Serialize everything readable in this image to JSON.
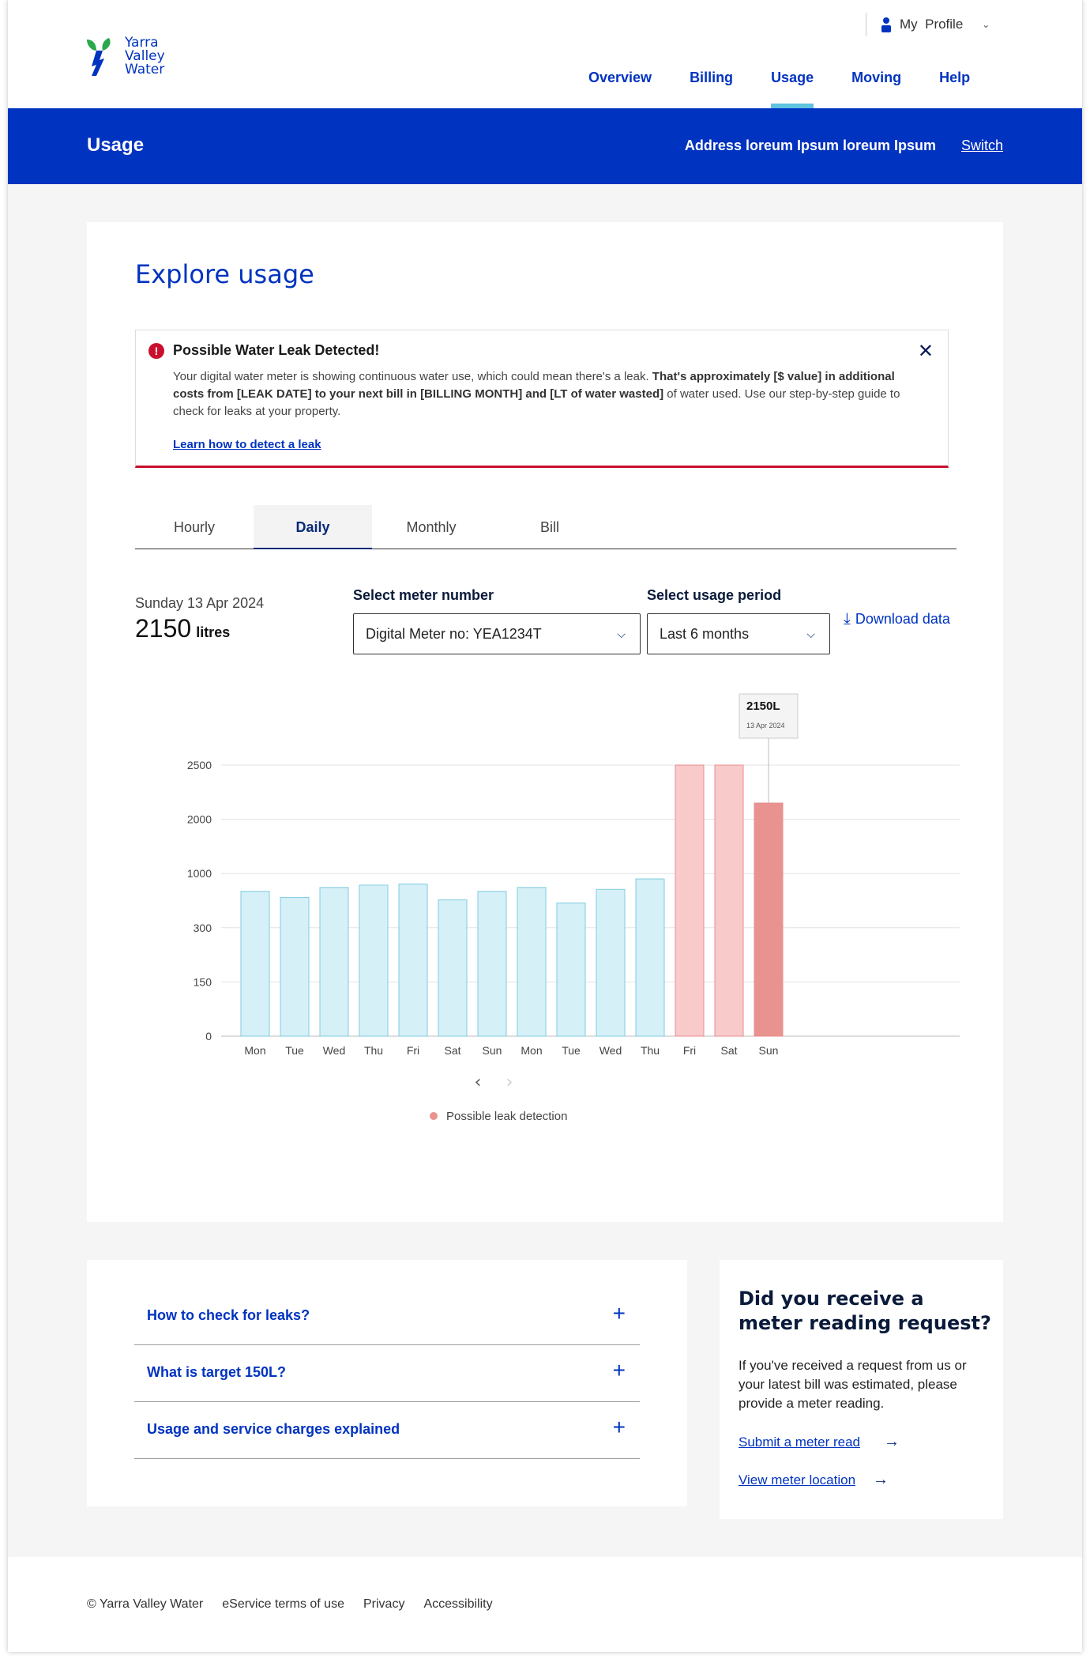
{
  "brand": {
    "name_line1": "Yarra",
    "name_line2": "Valley",
    "name_line3": "Water"
  },
  "profile": {
    "label": "My  Profile"
  },
  "nav": [
    "Overview",
    "Billing",
    "Usage",
    "Moving",
    "Help"
  ],
  "banner": {
    "title": "Usage",
    "address": "Address loreum Ipsum loreum Ipsum",
    "switch": "Switch"
  },
  "page": {
    "title": "Explore usage"
  },
  "alert": {
    "title": "Possible Water Leak Detected!",
    "text_a": "Your digital water meter is showing continuous water use, which could mean there's a leak. ",
    "text_b": "That's approximately [$ value] in additional costs from [LEAK DATE] to your next bill in [BILLING MONTH] and [LT of water wasted]",
    "text_c": " of water used.  Use our step-by-step guide to check for leaks at your property.",
    "link": "Learn how to detect a leak"
  },
  "tabs": [
    "Hourly",
    "Daily",
    "Monthly",
    "Bill"
  ],
  "summary": {
    "date": "Sunday 13 Apr 2024",
    "value": "2150",
    "unit": "litres"
  },
  "meter": {
    "label": "Select meter number",
    "value": "Digital Meter no: YEA1234T"
  },
  "period": {
    "label": "Select usage period",
    "value": "Last 6 months"
  },
  "download": "Download data",
  "chart_data": {
    "type": "bar",
    "categories": [
      "Mon",
      "Tue",
      "Wed",
      "Thu",
      "Fri",
      "Sat",
      "Sun",
      "Mon",
      "Tue",
      "Wed",
      "Thu",
      "Fri",
      "Sat",
      "Sun"
    ],
    "values": [
      770,
      690,
      820,
      850,
      865,
      660,
      770,
      820,
      620,
      795,
      930,
      2500,
      2500,
      2150
    ],
    "leak": [
      false,
      false,
      false,
      false,
      false,
      false,
      false,
      false,
      false,
      false,
      false,
      true,
      true,
      true
    ],
    "yticks": [
      "0",
      "150",
      "300",
      "1000",
      "2000",
      "2500"
    ],
    "tooltip": {
      "value": "2150L",
      "date": "13 Apr 2024"
    },
    "legend": "Possible leak detection",
    "colors": {
      "normal": "#d6f0f7",
      "normal_stroke": "#7fcbe0",
      "leak": "#f8caca",
      "leak_stroke": "#e88e8e",
      "selected": "#e8938f"
    }
  },
  "faq": [
    "How to check for leaks?",
    "What is target 150L?",
    "Usage and service charges explained"
  ],
  "meter_read": {
    "title": "Did you receive a meter reading request?",
    "text": "If you've received a request from us or your latest bill was estimated, please provide a meter reading.",
    "link1": "Submit a meter read",
    "link2": "View meter location"
  },
  "footer": [
    "© Yarra Valley Water",
    "eService terms of use",
    "Privacy",
    "Accessibility"
  ]
}
